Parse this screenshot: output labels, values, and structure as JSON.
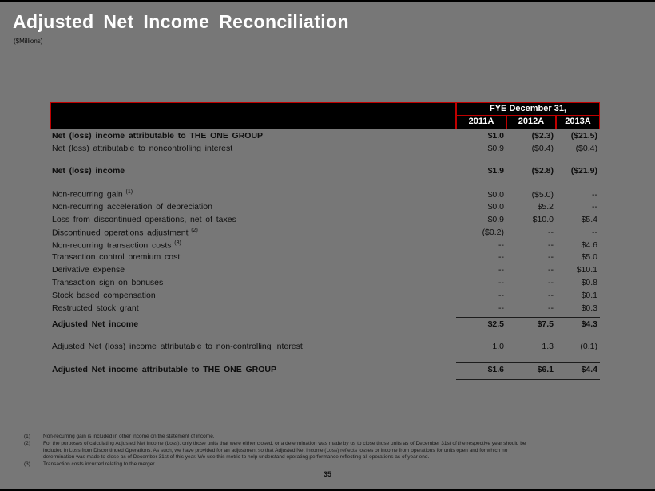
{
  "slide": {
    "title": "Adjusted Net Income Reconciliation",
    "subtitle": "($Millions)",
    "page_number": "35"
  },
  "colors": {
    "background": "#777777",
    "header_fill": "#000000",
    "header_border": "#C00000",
    "header_text": "#FFFFFF",
    "title_text": "#FFFFFF",
    "body_text": "#0E0E0E"
  },
  "table": {
    "header": {
      "group_label": "FYE December 31,",
      "columns": [
        "2011A",
        "2012A",
        "2013A"
      ]
    },
    "rows": [
      {
        "kind": "data",
        "label": "Net (loss) income attributable to THE ONE GROUP",
        "bold": true,
        "values": [
          "$1.0",
          "($2.3)",
          "($21.5)"
        ]
      },
      {
        "kind": "data",
        "label": "Net (loss) attributable to noncontrolling interest",
        "bold": false,
        "values": [
          "$0.9",
          "($0.4)",
          "($0.4)"
        ]
      },
      {
        "kind": "spacer",
        "h": 7
      },
      {
        "kind": "rule"
      },
      {
        "kind": "data",
        "label": "Net (loss) income",
        "bold": true,
        "values": [
          "$1.9",
          "($2.8)",
          "($21.9)"
        ]
      },
      {
        "kind": "spacer",
        "h": 14
      },
      {
        "kind": "data",
        "label": "Non-recurring gain",
        "sup": "(1)",
        "bold": false,
        "values": [
          "$0.0",
          "($5.0)",
          "--"
        ]
      },
      {
        "kind": "data",
        "label": "Non-recurring acceleration of depreciation",
        "bold": false,
        "values": [
          "$0.0",
          "$5.2",
          "--"
        ]
      },
      {
        "kind": "data",
        "label": "Loss from discontinued operations, net of taxes",
        "bold": false,
        "values": [
          "$0.9",
          "$10.0",
          "$5.4"
        ]
      },
      {
        "kind": "data",
        "label": "Discontinued operations adjustment",
        "sup": "(2)",
        "bold": false,
        "values": [
          "($0.2)",
          "--",
          "--"
        ]
      },
      {
        "kind": "data",
        "label": "Non-recurring transaction costs",
        "sup": "(3)",
        "bold": false,
        "values": [
          "--",
          "--",
          "$4.6"
        ]
      },
      {
        "kind": "data",
        "label": "Transaction control premium cost",
        "bold": false,
        "values": [
          "--",
          "--",
          "$5.0"
        ]
      },
      {
        "kind": "data",
        "label": "Derivative expense",
        "bold": false,
        "values": [
          "--",
          "--",
          "$10.1"
        ]
      },
      {
        "kind": "data",
        "label": "Transaction sign on bonuses",
        "bold": false,
        "values": [
          "--",
          "--",
          "$0.8"
        ]
      },
      {
        "kind": "data",
        "label": "Stock based compensation",
        "bold": false,
        "values": [
          "--",
          "--",
          "$0.1"
        ]
      },
      {
        "kind": "data",
        "label": "Restructed stock grant",
        "bold": false,
        "values": [
          "--",
          "--",
          "$0.3"
        ]
      },
      {
        "kind": "rule"
      },
      {
        "kind": "data",
        "label": "Adjusted Net income",
        "bold": true,
        "values": [
          "$2.5",
          "$7.5",
          "$4.3"
        ]
      },
      {
        "kind": "spacer",
        "h": 12
      },
      {
        "kind": "data",
        "label": "Adjusted Net (loss) income attributable to non-controlling interest",
        "bold": false,
        "values": [
          "1.0",
          "1.3",
          "(0.1)"
        ]
      },
      {
        "kind": "spacer",
        "h": 8
      },
      {
        "kind": "rule"
      },
      {
        "kind": "data",
        "label": "Adjusted Net income attributable to THE ONE GROUP",
        "bold": true,
        "values": [
          "$1.6",
          "$6.1",
          "$4.4"
        ]
      },
      {
        "kind": "rule"
      }
    ]
  },
  "footnotes": [
    {
      "marker": "(1)",
      "text": "Non-recurring gain is included in other income on the statement of income."
    },
    {
      "marker": "(2)",
      "text": "For the purposes of calculating Adjusted Net Income (Loss), only those units that were either closed, or a determination was made by us to close those units as of December 31st of the respective year should be included in Loss from Discontinued Operations. As such, we have provided for an adjustment so that Adjusted Net Income (Loss) reflects losses or income from operations for units open and for which no determination was made to close as of December 31st of this year. We use this metric to help understand operating performance reflecting all operations as of year end."
    },
    {
      "marker": "(3)",
      "text": "Transaction costs incurred relating to the merger."
    }
  ]
}
